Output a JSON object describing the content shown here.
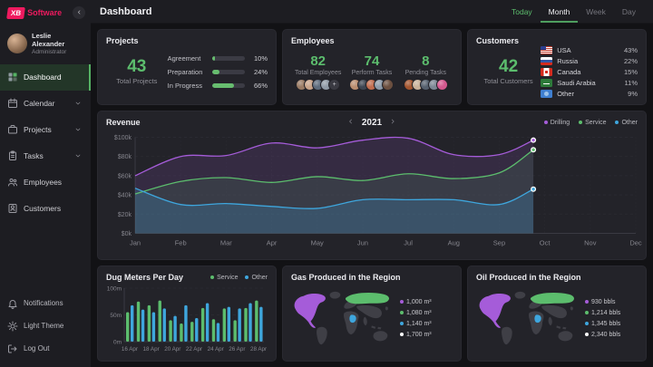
{
  "brand": {
    "badge": "XB",
    "name": "Software"
  },
  "sidebar": {
    "user": {
      "name": "Leslie Alexander",
      "role": "Administrator"
    },
    "items": [
      {
        "label": "Dashboard"
      },
      {
        "label": "Calendar"
      },
      {
        "label": "Projects"
      },
      {
        "label": "Tasks"
      },
      {
        "label": "Employees"
      },
      {
        "label": "Customers"
      }
    ],
    "footer": [
      {
        "label": "Notifications"
      },
      {
        "label": "Light Theme"
      },
      {
        "label": "Log Out"
      }
    ]
  },
  "topbar": {
    "title": "Dashboard",
    "tabs": [
      {
        "label": "Today"
      },
      {
        "label": "Month"
      },
      {
        "label": "Week"
      },
      {
        "label": "Day"
      }
    ]
  },
  "projects": {
    "title": "Projects",
    "total": "43",
    "total_label": "Total Projects",
    "rows": [
      {
        "label": "Agreement",
        "pct": 10,
        "pct_label": "10%"
      },
      {
        "label": "Preparation",
        "pct": 24,
        "pct_label": "24%"
      },
      {
        "label": "In Progress",
        "pct": 66,
        "pct_label": "66%"
      }
    ]
  },
  "employees": {
    "title": "Employees",
    "stats": [
      {
        "value": "82",
        "label": "Total Employees",
        "avatar_count": 4,
        "has_more": true
      },
      {
        "value": "74",
        "label": "Perform Tasks",
        "avatar_count": 5,
        "has_more": false
      },
      {
        "value": "8",
        "label": "Pending Tasks",
        "avatar_count": 5,
        "has_more": false
      }
    ]
  },
  "customers": {
    "title": "Customers",
    "total": "42",
    "total_label": "Total Customers",
    "rows": [
      {
        "flag": "usa",
        "label": "USA",
        "pct": "43%"
      },
      {
        "flag": "russia",
        "label": "Russia",
        "pct": "22%"
      },
      {
        "flag": "canada",
        "label": "Canada",
        "pct": "15%"
      },
      {
        "flag": "saudi-arabia",
        "label": "Saudi Arabia",
        "pct": "11%"
      },
      {
        "flag": "other",
        "label": "Other",
        "pct": "9%"
      }
    ]
  },
  "revenue": {
    "title": "Revenue",
    "year": "2021"
  },
  "colors": {
    "accent_green": "#5cbd6d",
    "purple": "#a55cd9",
    "blue": "#3ea6dd",
    "brand_pink": "#ee1a5f"
  },
  "chart_data": [
    {
      "type": "area",
      "title": "Revenue",
      "x_labels": [
        "Jan",
        "Feb",
        "Mar",
        "Apr",
        "May",
        "Jun",
        "Jul",
        "Aug",
        "Sep",
        "Oct",
        "Nov",
        "Dec"
      ],
      "x": [
        0,
        1,
        2,
        3,
        4,
        5,
        6,
        7,
        8,
        8.75
      ],
      "ylim": [
        0,
        100
      ],
      "yticks": [
        0,
        20,
        40,
        60,
        80,
        100
      ],
      "ytick_labels": [
        "$0k",
        "$20k",
        "$40k",
        "$60k",
        "$80k",
        "$100k"
      ],
      "grid": "dashed",
      "legend_position": "top-right",
      "series": [
        {
          "name": "Drilling",
          "color": "#a55cd9",
          "values": [
            60,
            80,
            81,
            94,
            89,
            97,
            99,
            82,
            82,
            97
          ]
        },
        {
          "name": "Service",
          "color": "#5cbd6d",
          "values": [
            41,
            54,
            58,
            53,
            59,
            55,
            62,
            57,
            63,
            87
          ]
        },
        {
          "name": "Other",
          "color": "#3ea6dd",
          "values": [
            47,
            30,
            31,
            28,
            26,
            35,
            35,
            35,
            30,
            46
          ]
        }
      ]
    },
    {
      "type": "bar",
      "title": "Dug Meters Per Day",
      "categories": [
        "16 Apr",
        "17 Apr",
        "18 Apr",
        "19 Apr",
        "20 Apr",
        "21 Apr",
        "22 Apr",
        "23 Apr",
        "24 Apr",
        "25 Apr",
        "26 Apr",
        "27 Apr",
        "28 Apr"
      ],
      "tick_labels": [
        "16 Apr",
        "18 Apr",
        "20 Apr",
        "22 Apr",
        "24 Apr",
        "26 Apr",
        "28 Apr"
      ],
      "ylim": [
        0,
        100
      ],
      "yticks": [
        0,
        50,
        100
      ],
      "ytick_labels": [
        "0m",
        "50m",
        "100m"
      ],
      "series": [
        {
          "name": "Service",
          "color": "#5cbd6d",
          "values": [
            55,
            75,
            68,
            77,
            40,
            34,
            37,
            63,
            42,
            62,
            40,
            63,
            77
          ]
        },
        {
          "name": "Other",
          "color": "#3ea6dd",
          "values": [
            68,
            60,
            55,
            62,
            48,
            68,
            44,
            72,
            35,
            65,
            62,
            72,
            65
          ]
        }
      ]
    },
    {
      "type": "map",
      "title": "Gas Produced in the Region",
      "legend": [
        {
          "label": "1,000 m³",
          "color": "#a55cd9",
          "region": "north-america"
        },
        {
          "label": "1,080 m³",
          "color": "#5cbd6d",
          "region": "russia"
        },
        {
          "label": "1,140 m³",
          "color": "#3ea6dd",
          "region": "central-africa"
        },
        {
          "label": "1,700 m³",
          "color": "#ffffff",
          "region": "other"
        }
      ]
    },
    {
      "type": "map",
      "title": "Oil Produced in the Region",
      "legend": [
        {
          "label": "930 bbls",
          "color": "#a55cd9",
          "region": "north-america"
        },
        {
          "label": "1,214 bbls",
          "color": "#5cbd6d",
          "region": "russia"
        },
        {
          "label": "1,345 bbls",
          "color": "#3ea6dd",
          "region": "central-africa"
        },
        {
          "label": "2,340 bbls",
          "color": "#ffffff",
          "region": "other"
        }
      ]
    }
  ]
}
